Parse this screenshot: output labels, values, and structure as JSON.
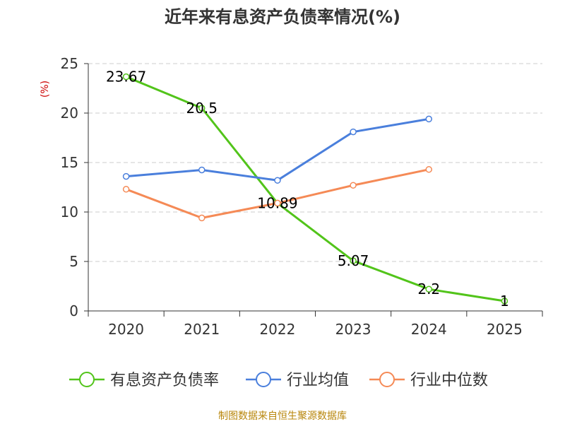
{
  "chart_data": {
    "type": "line",
    "title": "近年来有息资产负债率情况(%)",
    "ylabel": "(%)",
    "xlabel": "",
    "categories": [
      "2020",
      "2021",
      "2022",
      "2023",
      "2024",
      "2025"
    ],
    "ylim": [
      0,
      25
    ],
    "yticks": [
      0,
      5,
      10,
      15,
      20,
      25
    ],
    "grid": "horizontal-dashed",
    "legend_position": "bottom",
    "series": [
      {
        "name": "有息资产负债率",
        "color": "#52c41a",
        "values": [
          23.67,
          20.5,
          10.89,
          5.07,
          2.2,
          1
        ],
        "data_labels": [
          "23.67",
          "20.5",
          "10.89",
          "5.07",
          "2.2",
          "1"
        ]
      },
      {
        "name": "行业均值",
        "color": "#4a7fdc",
        "values": [
          13.6,
          14.25,
          13.2,
          18.1,
          19.4,
          null
        ]
      },
      {
        "name": "行业中位数",
        "color": "#f58a56",
        "values": [
          12.3,
          9.4,
          10.9,
          12.7,
          14.3,
          null
        ]
      }
    ]
  },
  "source": "制图数据来自恒生聚源数据库",
  "colors": {
    "axis": "#333333",
    "grid": "#cccccc",
    "title": "#333333",
    "ylabel": "#cc0000"
  }
}
